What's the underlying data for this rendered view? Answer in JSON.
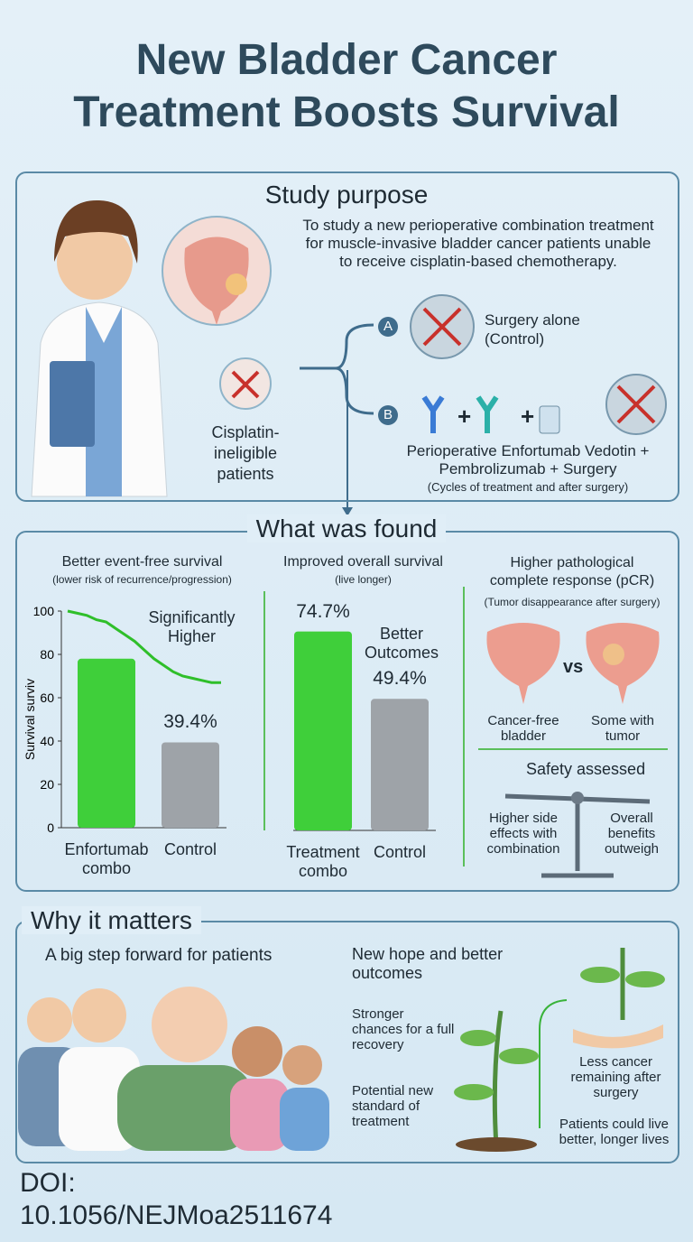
{
  "title_lines": [
    "New Bladder Cancer",
    "Treatment Boosts Survival"
  ],
  "study_purpose": {
    "heading": "Study purpose",
    "description": [
      "To study a new perioperative combination treatment",
      "for muscle-invasive bladder cancer patients unable",
      "to receive cisplatin-based chemotherapy."
    ],
    "patients_label": [
      "Cisplatin-",
      "ineligible",
      "patients"
    ],
    "arm_a": {
      "letter": "A",
      "label": [
        "Surgery alone",
        "(Control)"
      ]
    },
    "arm_b": {
      "letter": "B",
      "plus": "+",
      "label": [
        "Perioperative Enfortumab Vedotin +",
        "Pembrolizumab + Surgery"
      ],
      "note": "(Cycles of treatment and after surgery)"
    }
  },
  "findings": {
    "heading": "What was found",
    "event_free": {
      "title": "Better event-free survival",
      "subtitle": "(lower risk of recurrence/progression)",
      "annotation": [
        "Significantly",
        "Higher"
      ],
      "chart": {
        "type": "bar",
        "y_label": "Survival surviv",
        "categories": [
          "Enfortumab combo",
          "Control"
        ],
        "values": [
          78,
          39.4
        ],
        "value_labels": [
          null,
          "39.4%"
        ],
        "colors": [
          "#3fcf3a",
          "#9ea3a8"
        ],
        "line_values": [
          100,
          99,
          98,
          96,
          95,
          92,
          89,
          86,
          82,
          78,
          75,
          72,
          70,
          69,
          68,
          67,
          67
        ],
        "line_color": "#2fbf2a",
        "ylim": [
          0,
          100
        ],
        "yticks": [
          0,
          20,
          40,
          60,
          80,
          100
        ]
      }
    },
    "overall": {
      "title": "Improved overall survival",
      "subtitle": "(live longer)",
      "annotation": [
        "Better",
        "Outcomes"
      ],
      "chart": {
        "type": "bar",
        "categories": [
          "Treatment combo",
          "Control"
        ],
        "values": [
          74.7,
          49.4
        ],
        "value_labels": [
          "74.7%",
          "49.4%"
        ],
        "colors": [
          "#3fcf3a",
          "#9ea3a8"
        ],
        "ylim": [
          0,
          100
        ]
      }
    },
    "pcr": {
      "title": [
        "Higher pathological",
        "complete response (pCR)"
      ],
      "subtitle": "(Tumor disappearance after surgery)",
      "vs": "vs",
      "left_label": "Cancer-free bladder",
      "right_label": "Some with tumor",
      "safety": "Safety assessed",
      "left_note": "Higher side effects with combination",
      "right_note": "Overall benefits outweigh"
    }
  },
  "matters": {
    "heading": "Why it matters",
    "subheading": "A big step forward for patients",
    "points": [
      "New hope and better outcomes",
      "Stronger chances for a full recovery",
      "Potential new standard of treatment"
    ],
    "right_points": [
      "Less cancer remaining after surgery",
      "Patients could live better, longer lives"
    ]
  },
  "doi": [
    "DOI:",
    "10.1056/NEJMoa2511674"
  ]
}
